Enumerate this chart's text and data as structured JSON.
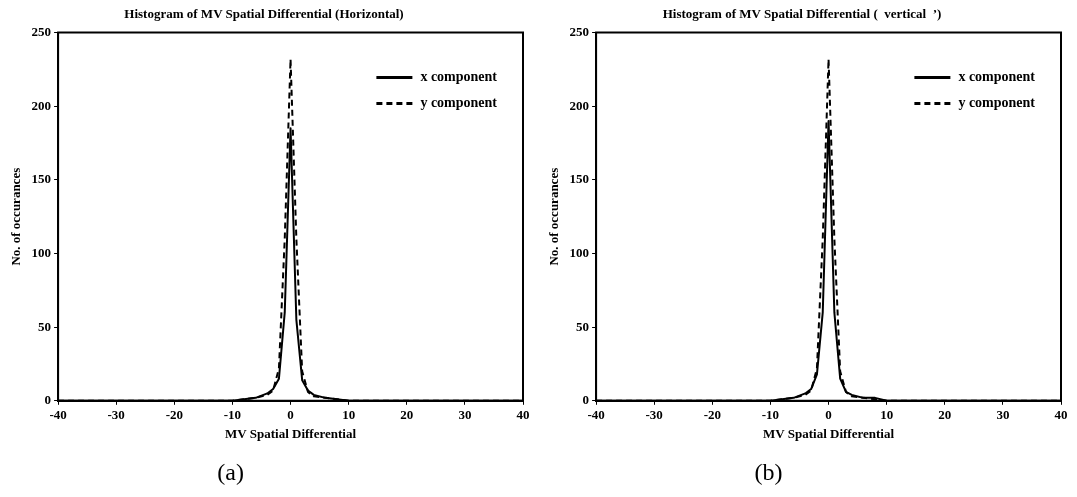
{
  "chart_data": [
    {
      "type": "line",
      "title": "Histogram of MV Spatial Differential (Horizontal)",
      "xlabel": "MV Spatial Differential",
      "ylabel": "No. of occurances",
      "x": [
        -40,
        -10,
        -8,
        -6,
        -4,
        -3,
        -2,
        -1,
        0,
        1,
        2,
        3,
        4,
        6,
        8,
        10,
        40
      ],
      "series": [
        {
          "name": "x component",
          "color": "#000000",
          "line_style": "solid",
          "values": [
            0,
            0,
            1,
            2,
            5,
            8,
            15,
            60,
            185,
            55,
            14,
            7,
            4,
            2,
            1,
            0,
            0
          ]
        },
        {
          "name": "y component",
          "color": "#000000",
          "line_style": "dashed",
          "values": [
            0,
            0,
            1,
            2,
            4,
            7,
            22,
            110,
            232,
            110,
            20,
            6,
            3,
            2,
            1,
            0,
            0
          ]
        }
      ],
      "xlim": [
        -40,
        40
      ],
      "xticks": [
        -40,
        -30,
        -20,
        -10,
        0,
        10,
        20,
        30,
        40
      ],
      "ylim": [
        0,
        250
      ],
      "yticks": [
        0,
        50,
        100,
        150,
        200,
        250
      ],
      "grid": false,
      "legend": "top right",
      "marker": "none",
      "annotations": [
        "(a)"
      ]
    },
    {
      "type": "line",
      "title": "Histogram of MV Spatial Differential (  vertical  ’)",
      "xlabel": "MV Spatial Differential",
      "ylabel": "No. of occurances",
      "x": [
        -40,
        -10,
        -8,
        -6,
        -4,
        -3,
        -2,
        -1,
        0,
        1,
        2,
        3,
        4,
        6,
        8,
        10,
        40
      ],
      "series": [
        {
          "name": "x component",
          "color": "#000000",
          "line_style": "solid",
          "values": [
            0,
            0,
            1,
            2,
            5,
            8,
            18,
            60,
            190,
            60,
            15,
            6,
            4,
            2,
            2,
            0,
            0
          ]
        },
        {
          "name": "y component",
          "color": "#000000",
          "line_style": "dashed",
          "values": [
            0,
            0,
            1,
            2,
            4,
            7,
            22,
            110,
            232,
            110,
            20,
            6,
            3,
            2,
            1,
            0,
            0
          ]
        }
      ],
      "xlim": [
        -40,
        40
      ],
      "xticks": [
        -40,
        -30,
        -20,
        -10,
        0,
        10,
        20,
        30,
        40
      ],
      "ylim": [
        0,
        250
      ],
      "yticks": [
        0,
        50,
        100,
        150,
        200,
        250
      ],
      "grid": false,
      "legend": "top right",
      "marker": "none",
      "annotations": [
        "(b)"
      ]
    }
  ]
}
